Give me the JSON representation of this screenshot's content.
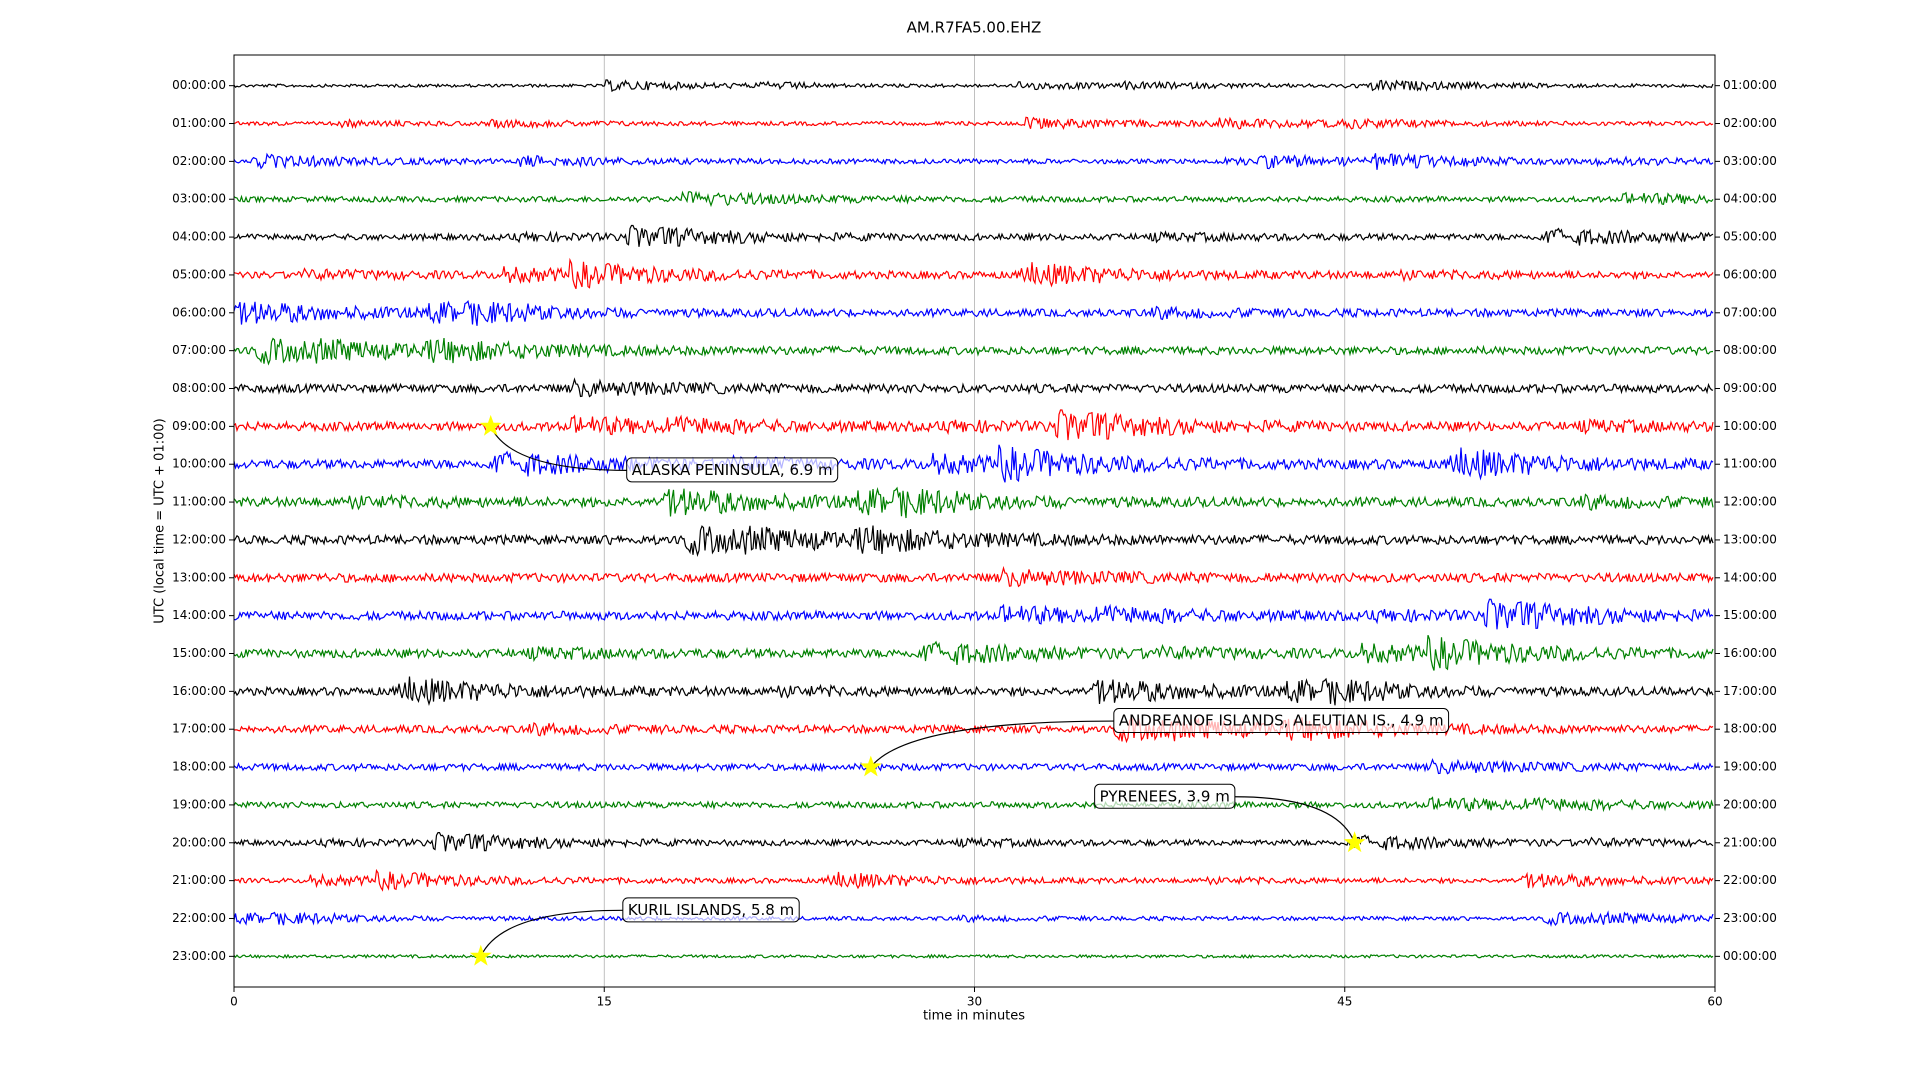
{
  "chart_data": {
    "type": "dayplot",
    "title": "AM.R7FA5.00.EHZ",
    "x_label": "time in minutes",
    "y_label": "UTC (local time = UTC + 01:00)",
    "xlim": [
      0,
      60
    ],
    "xticks": [
      0,
      15,
      30,
      45,
      60
    ],
    "grid": true,
    "rows": [
      "00:00:00",
      "01:00:00",
      "02:00:00",
      "03:00:00",
      "04:00:00",
      "05:00:00",
      "06:00:00",
      "07:00:00",
      "08:00:00",
      "09:00:00",
      "10:00:00",
      "11:00:00",
      "12:00:00",
      "13:00:00",
      "14:00:00",
      "15:00:00",
      "16:00:00",
      "17:00:00",
      "18:00:00",
      "19:00:00",
      "20:00:00",
      "21:00:00",
      "22:00:00",
      "23:00:00"
    ],
    "rows_right": [
      "01:00:00",
      "02:00:00",
      "03:00:00",
      "04:00:00",
      "05:00:00",
      "06:00:00",
      "07:00:00",
      "08:00:00",
      "09:00:00",
      "10:00:00",
      "11:00:00",
      "12:00:00",
      "13:00:00",
      "14:00:00",
      "15:00:00",
      "16:00:00",
      "17:00:00",
      "18:00:00",
      "19:00:00",
      "20:00:00",
      "21:00:00",
      "22:00:00",
      "23:00:00",
      "00:00:00"
    ],
    "colors": [
      "#000000",
      "#ff0000",
      "#0000ff",
      "#008000"
    ],
    "events": [
      {
        "label": "ALASKA PENINSULA, 6.9 m",
        "x": 10.4,
        "row": "09:00:00"
      },
      {
        "label": "ANDREANOF ISLANDS, ALEUTIAN IS., 4.9 m",
        "x": 25.8,
        "row": "18:00:00"
      },
      {
        "label": "PYRENEES, 3.9 m",
        "x": 45.4,
        "row": "20:00:00"
      },
      {
        "label": "KURIL ISLANDS, 5.8 m",
        "x": 10,
        "row": "23:00:00"
      }
    ]
  }
}
